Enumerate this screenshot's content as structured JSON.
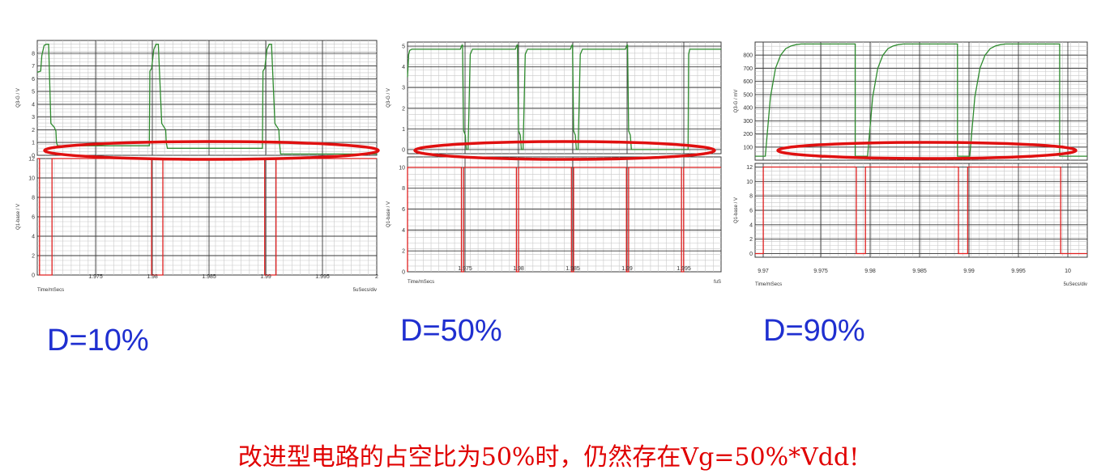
{
  "chart_data": [
    {
      "type": "line",
      "label": "D=10%",
      "x_label": "Time/mSecs",
      "x_right_label": "5uSecs/div",
      "x_ticks": [
        "1.975",
        "1.98",
        "1.985",
        "1.99",
        "1.995",
        "2"
      ],
      "x_range": [
        1.97,
        2.0
      ],
      "top": {
        "ylabel": "Q3-G / V",
        "ticks": [
          "0",
          "1",
          "2",
          "3",
          "4",
          "5",
          "6",
          "7",
          "8"
        ],
        "ylim": [
          0,
          9
        ],
        "series": [
          {
            "color": "#2e8b2e",
            "x": [
              1.97,
              1.9703,
              1.9704,
              1.9706,
              1.9708,
              1.971,
              1.9712,
              1.9715,
              1.97165,
              1.9717,
              1.9718,
              1.973,
              1.9799,
              1.97995,
              1.9801,
              1.9803,
              1.9805,
              1.9807,
              1.981,
              1.98135,
              1.9814,
              1.9815,
              1.9899,
              1.98995,
              1.9901,
              1.9903,
              1.9905,
              1.9907,
              1.991,
              1.99135,
              1.9914,
              1.9915,
              2.0
            ],
            "y": [
              6.5,
              6.6,
              7.8,
              8.6,
              8.7,
              8.7,
              2.5,
              2.2,
              1.9,
              1.0,
              0.75,
              0.75,
              0.75,
              6.6,
              6.8,
              8.3,
              8.7,
              8.7,
              2.5,
              2.0,
              1.0,
              0.55,
              0.55,
              6.6,
              6.8,
              8.3,
              8.7,
              8.7,
              2.5,
              2.0,
              1.0,
              0.1,
              0.1
            ]
          }
        ]
      },
      "bottom": {
        "ylabel": "Q1-base / V",
        "ticks": [
          "0",
          "2",
          "4",
          "6",
          "8",
          "10",
          "12"
        ],
        "ylim": [
          0,
          12
        ],
        "series": [
          {
            "color": "#e02020",
            "x": [
              1.97,
              1.9702,
              1.9702,
              1.9713,
              1.9713,
              1.9801,
              1.9801,
              1.9811,
              1.9811,
              1.9901,
              1.9901,
              1.9911,
              1.9911,
              2.0
            ],
            "y": [
              12,
              12,
              0,
              0,
              12,
              12,
              0,
              0,
              12,
              12,
              0,
              0,
              12,
              12
            ]
          }
        ]
      }
    },
    {
      "type": "line",
      "label": "D=50%",
      "x_label": "Time/mSecs",
      "x_right_label": "fuS",
      "x_ticks": [
        "1.975",
        "1.98",
        "1.985",
        "1.99",
        "1.995"
      ],
      "x_range": [
        1.97,
        1.9985
      ],
      "top": {
        "ylabel": "Q3-G / V",
        "ticks": [
          "0",
          "1",
          "2",
          "3",
          "4",
          "5"
        ],
        "ylim": [
          -0.2,
          5.2
        ],
        "series": [
          {
            "color": "#2e8b2e",
            "x": [
              1.97,
              1.9701,
              1.9702,
              1.9704,
              1.9705,
              1.9748,
              1.97495,
              1.975,
              1.9751,
              1.97525,
              1.97535,
              1.97545,
              1.9755,
              1.9757,
              1.9759,
              1.9798,
              1.97995,
              1.98,
              1.9801,
              1.98025,
              1.98035,
              1.98045,
              1.9805,
              1.9807,
              1.9809,
              1.9848,
              1.98495,
              1.985,
              1.9851,
              1.98525,
              1.98535,
              1.98545,
              1.9855,
              1.9857,
              1.9859,
              1.9898,
              1.98995,
              1.99,
              1.9901,
              1.99025,
              1.99035,
              1.99045,
              1.9955,
              1.99555,
              1.99565,
              1.9957,
              1.9985
            ],
            "y": [
              3.5,
              4.6,
              4.8,
              4.85,
              4.85,
              4.85,
              5.05,
              5.05,
              0.9,
              0.7,
              0.0,
              0.0,
              0.0,
              4.6,
              4.85,
              4.85,
              5.05,
              5.05,
              0.9,
              0.7,
              0.0,
              0.0,
              0.0,
              4.6,
              4.85,
              4.85,
              5.05,
              5.05,
              0.9,
              0.7,
              0.0,
              0.0,
              0.0,
              4.6,
              4.85,
              4.85,
              5.05,
              5.05,
              0.9,
              0.7,
              0.0,
              0.0,
              0.0,
              4.6,
              4.85,
              4.85,
              4.85
            ]
          }
        ]
      },
      "bottom": {
        "ylabel": "Q1-base / V",
        "ticks": [
          "0",
          "2",
          "4",
          "6",
          "8",
          "10"
        ],
        "ylim": [
          0,
          11
        ],
        "series": [
          {
            "color": "#e02020",
            "x": [
              1.97,
              1.97,
              1.9749,
              1.9749,
              1.9751,
              1.9751,
              1.9799,
              1.9799,
              1.9801,
              1.9801,
              1.9849,
              1.9849,
              1.9851,
              1.9851,
              1.9899,
              1.9899,
              1.9901,
              1.9901,
              1.9949,
              1.9949,
              1.9951,
              1.9951,
              1.9985
            ],
            "y": [
              0,
              10,
              10,
              0,
              0,
              10,
              10,
              0,
              0,
              10,
              10,
              0,
              0,
              10,
              10,
              0,
              0,
              10,
              10,
              0,
              0,
              10,
              10
            ]
          }
        ]
      }
    },
    {
      "type": "line",
      "label": "D=90%",
      "x_label": "Time/mSecs",
      "x_right_label": "5uSecs/div",
      "x_ticks": [
        "9.97",
        "9.975",
        "9.98",
        "9.985",
        "9.99",
        "9.995",
        "10"
      ],
      "x_range": [
        9.969,
        10.0015
      ],
      "top": {
        "ylabel": "Q3-G / mV",
        "ticks": [
          "100",
          "200",
          "300",
          "400",
          "500",
          "600",
          "700",
          "800"
        ],
        "ylim": [
          0,
          900
        ],
        "series": [
          {
            "color": "#2e8b2e",
            "x": [
              9.969,
              9.9698,
              9.97,
              9.9705,
              9.971,
              9.9715,
              9.972,
              9.9725,
              9.973,
              9.9735,
              9.975,
              9.9788,
              9.9788,
              9.9795,
              9.9799,
              9.98,
              9.9805,
              9.981,
              9.9815,
              9.982,
              9.9825,
              9.983,
              9.9835,
              9.985,
              9.9888,
              9.9888,
              9.9895,
              9.9899,
              9.99,
              9.9905,
              9.991,
              9.9915,
              9.992,
              9.9925,
              9.993,
              9.9935,
              9.995,
              9.9988,
              9.9988,
              9.9995,
              9.9999,
              10.0,
              10.0015
            ],
            "y": [
              30,
              30,
              30,
              480,
              700,
              800,
              850,
              870,
              880,
              885,
              885,
              885,
              30,
              30,
              30,
              30,
              480,
              700,
              800,
              850,
              870,
              880,
              885,
              885,
              885,
              30,
              30,
              30,
              30,
              480,
              700,
              800,
              850,
              870,
              880,
              885,
              885,
              885,
              30,
              30,
              30,
              30,
              30
            ]
          }
        ]
      },
      "bottom": {
        "ylabel": "Q1-base / V",
        "ticks": [
          "0",
          "2",
          "4",
          "6",
          "8",
          "10",
          "12"
        ],
        "ylim": [
          -0.5,
          12.5
        ],
        "series": [
          {
            "color": "#e02020",
            "x": [
              9.969,
              9.9698,
              9.9698,
              9.9789,
              9.9789,
              9.9798,
              9.9798,
              9.9889,
              9.9889,
              9.9898,
              9.9898,
              9.9989,
              9.9989,
              10.0015
            ],
            "y": [
              0,
              0,
              12,
              12,
              0,
              0,
              12,
              12,
              0,
              0,
              12,
              12,
              0,
              0
            ]
          }
        ]
      }
    }
  ],
  "labels": {
    "d10": "D=10%",
    "d50": "D=50%",
    "d90": "D=90%"
  },
  "caption": "改进型电路的占空比为50%时，仍然存在Vg=50%*Vdd!",
  "colors": {
    "label_blue": "#1f2fd0",
    "caption_red": "#e00000",
    "ellipse_red": "#e01010",
    "grid_major": "#3a3a3a",
    "grid_minor": "#c8c8c8"
  }
}
